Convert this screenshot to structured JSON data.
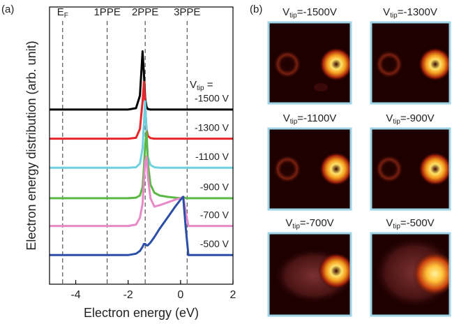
{
  "chart_data": {
    "type": "line",
    "panel_label": "(a)",
    "x_label": "Electron energy (eV)",
    "y_label": "Electron energy distribution (arb. unit)",
    "xlim": [
      -5,
      2
    ],
    "xticks": [
      -4,
      -2,
      0,
      2
    ],
    "ylim": [
      0,
      10
    ],
    "legend_header": {
      "main": "V",
      "sub": "tip",
      "rest": " ="
    },
    "vlines": [
      {
        "value": -4.5,
        "label": "E",
        "label_sub": "F"
      },
      {
        "value": -2.8,
        "label": "1PPE"
      },
      {
        "value": -1.35,
        "label": "2PPE"
      },
      {
        "value": 0.25,
        "label": "3PPE"
      }
    ],
    "x": [
      -5,
      -2,
      -1.7,
      -1.55,
      -1.45,
      -1.4,
      -1.35,
      -1.3,
      -1.25,
      -1.15,
      -1.0,
      -0.8,
      -0.5,
      -0.2,
      0.0,
      0.1,
      0.2,
      0.3,
      2
    ],
    "series": [
      {
        "name": "-1500 V",
        "color": "#000000",
        "values": [
          6.3,
          6.3,
          6.35,
          6.8,
          8.4,
          7.6,
          6.7,
          6.4,
          6.32,
          6.3,
          6.3,
          6.3,
          6.3,
          6.3,
          6.3,
          6.3,
          6.3,
          6.3,
          6.3
        ]
      },
      {
        "name": "-1300 V",
        "color": "#e8262a",
        "values": [
          5.25,
          5.25,
          5.28,
          5.6,
          6.6,
          7.3,
          6.5,
          5.6,
          5.35,
          5.27,
          5.25,
          5.25,
          5.25,
          5.25,
          5.25,
          5.25,
          5.25,
          5.25,
          5.25
        ]
      },
      {
        "name": "-1100 V",
        "color": "#6fd0e0",
        "values": [
          4.2,
          4.2,
          4.22,
          4.35,
          4.9,
          5.8,
          6.6,
          5.5,
          4.6,
          4.3,
          4.22,
          4.2,
          4.2,
          4.2,
          4.2,
          4.2,
          4.2,
          4.2,
          4.2
        ]
      },
      {
        "name": "-900 V",
        "color": "#5cb846",
        "values": [
          3.1,
          3.1,
          3.12,
          3.2,
          3.5,
          4.2,
          5.0,
          5.5,
          4.4,
          3.6,
          3.3,
          3.2,
          3.15,
          3.12,
          3.1,
          3.15,
          3.1,
          3.1,
          3.1
        ]
      },
      {
        "name": "-700 V",
        "color": "#e88ac8",
        "values": [
          2.1,
          2.1,
          2.15,
          2.4,
          2.9,
          3.7,
          4.4,
          4.6,
          3.9,
          3.1,
          2.8,
          2.85,
          2.95,
          3.05,
          3.1,
          3.15,
          2.6,
          2.1,
          2.1
        ]
      },
      {
        "name": "-500 V",
        "color": "#2b4ea8",
        "values": [
          1.05,
          1.05,
          1.1,
          1.2,
          1.35,
          1.45,
          1.45,
          1.4,
          1.4,
          1.5,
          1.7,
          2.0,
          2.4,
          2.8,
          3.05,
          3.15,
          2.0,
          1.05,
          1.05
        ]
      }
    ]
  },
  "images_panel": {
    "panel_label": "(b)",
    "images": [
      {
        "main": "V",
        "sub": "tip",
        "rest": "=-1500V"
      },
      {
        "main": "V",
        "sub": "tip",
        "rest": "=-1300V"
      },
      {
        "main": "V",
        "sub": "tip",
        "rest": "=-1100V"
      },
      {
        "main": "V",
        "sub": "tip",
        "rest": "=-900V"
      },
      {
        "main": "V",
        "sub": "tip",
        "rest": "=-700V"
      },
      {
        "main": "V",
        "sub": "tip",
        "rest": "=-500V"
      }
    ]
  }
}
